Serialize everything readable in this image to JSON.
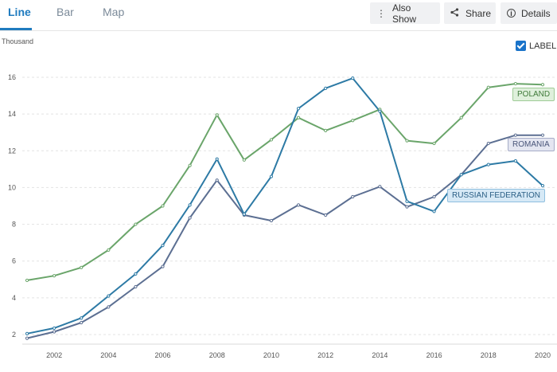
{
  "tabs": [
    {
      "label": "Line",
      "active": true
    },
    {
      "label": "Bar",
      "active": false
    },
    {
      "label": "Map",
      "active": false
    }
  ],
  "toolbar": {
    "also_show": "Also Show",
    "share": "Share",
    "details": "Details"
  },
  "label_toggle": {
    "text": "LABEL",
    "checked": true
  },
  "colors": {
    "accent": "#1f7bbf",
    "poland": "#6aa56a",
    "romania": "#5c6f92",
    "russia": "#2d7aa5"
  },
  "chart_data": {
    "type": "line",
    "unit_label": "Thousand",
    "x": [
      2001,
      2002,
      2003,
      2004,
      2005,
      2006,
      2007,
      2008,
      2009,
      2010,
      2011,
      2012,
      2013,
      2014,
      2015,
      2016,
      2017,
      2018,
      2019,
      2020
    ],
    "x_ticks": [
      2002,
      2004,
      2006,
      2008,
      2010,
      2012,
      2014,
      2016,
      2018,
      2020
    ],
    "y_ticks": [
      2,
      4,
      6,
      8,
      10,
      12,
      14,
      16
    ],
    "ylim": [
      1.8,
      16.5
    ],
    "grid": true,
    "series": [
      {
        "name": "POLAND",
        "color": "#6aa56a",
        "values": [
          4.95,
          5.2,
          5.65,
          6.6,
          8.0,
          9.0,
          11.2,
          13.95,
          11.5,
          12.6,
          13.8,
          13.1,
          13.65,
          14.25,
          12.55,
          12.4,
          13.8,
          15.45,
          15.65,
          15.6
        ]
      },
      {
        "name": "ROMANIA",
        "color": "#5c6f92",
        "values": [
          1.8,
          2.15,
          2.65,
          3.5,
          4.6,
          5.7,
          8.35,
          10.4,
          8.5,
          8.2,
          9.05,
          8.5,
          9.5,
          10.05,
          8.95,
          9.5,
          10.7,
          12.4,
          12.85,
          12.85
        ]
      },
      {
        "name": "RUSSIAN FEDERATION",
        "color": "#2d7aa5",
        "values": [
          2.05,
          2.35,
          2.9,
          4.1,
          5.3,
          6.85,
          9.05,
          11.55,
          8.55,
          10.6,
          14.3,
          15.4,
          15.95,
          14.15,
          9.25,
          8.7,
          10.7,
          11.25,
          11.45,
          10.1
        ]
      }
    ]
  }
}
